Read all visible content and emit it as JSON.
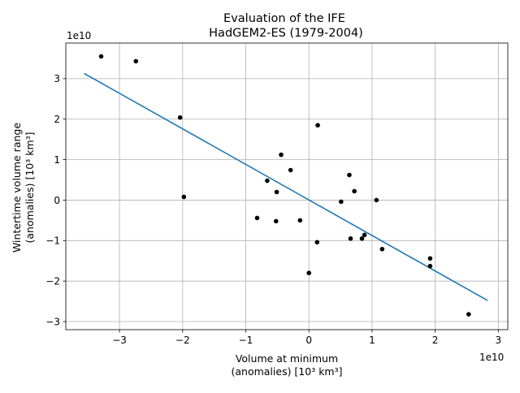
{
  "chart_data": {
    "type": "scatter",
    "title_lines": [
      "Evaluation of the IFE",
      "HadGEM2-ES (1979-2004)"
    ],
    "xlabel_lines": [
      "Volume at minimum",
      "(anomalies) [10³ km³]"
    ],
    "ylabel_lines": [
      "Wintertime volume range",
      "(anomalies) [10³ km³]"
    ],
    "x_multiplier": "1e10",
    "y_multiplier": "1e10",
    "xlim": [
      -38500000000.0,
      31500000000.0
    ],
    "ylim": [
      -32000000000.0,
      38800000000.0
    ],
    "x_ticks": [
      -30000000000.0,
      -20000000000.0,
      -10000000000.0,
      0,
      10000000000.0,
      20000000000.0,
      30000000000.0
    ],
    "x_tick_labels": [
      "−3",
      "−2",
      "−1",
      "0",
      "1",
      "2",
      "3"
    ],
    "y_ticks": [
      -30000000000.0,
      -20000000000.0,
      -10000000000.0,
      0,
      10000000000.0,
      20000000000.0,
      30000000000.0
    ],
    "y_tick_labels": [
      "−3",
      "−2",
      "−1",
      "0",
      "1",
      "2",
      "3"
    ],
    "grid": true,
    "point_color": "#000000",
    "line_color": "#1f77b4",
    "series": [
      {
        "points": [
          [
            -32900000000.0,
            35500000000.0
          ],
          [
            -27400000000.0,
            34300000000.0
          ],
          [
            -20400000000.0,
            20400000000.0
          ],
          [
            -19800000000.0,
            800000000.0
          ],
          [
            -8200000000.0,
            -4400000000.0
          ],
          [
            -6600000000.0,
            4800000000.0
          ],
          [
            -5200000000.0,
            -5200000000.0
          ],
          [
            -5100000000.0,
            2000000000.0
          ],
          [
            -4400000000.0,
            11200000000.0
          ],
          [
            -2900000000.0,
            7400000000.0
          ],
          [
            -1400000000.0,
            -5000000000.0
          ],
          [
            0.0,
            -18000000000.0
          ],
          [
            1400000000.0,
            18500000000.0
          ],
          [
            1300000000.0,
            -10400000000.0
          ],
          [
            5100000000.0,
            -400000000.0
          ],
          [
            6400000000.0,
            6200000000.0
          ],
          [
            6600000000.0,
            -9500000000.0
          ],
          [
            7200000000.0,
            2200000000.0
          ],
          [
            8400000000.0,
            -9500000000.0
          ],
          [
            8800000000.0,
            -8600000000.0
          ],
          [
            10700000000.0,
            0.0
          ],
          [
            11600000000.0,
            -12100000000.0
          ],
          [
            19200000000.0,
            -14400000000.0
          ],
          [
            19200000000.0,
            -16300000000.0
          ],
          [
            25300000000.0,
            -28200000000.0
          ]
        ]
      }
    ],
    "fit_line": {
      "x": [
        -35600000000.0,
        28300000000.0
      ],
      "y": [
        31300000000.0,
        -24800000000.0
      ]
    }
  }
}
